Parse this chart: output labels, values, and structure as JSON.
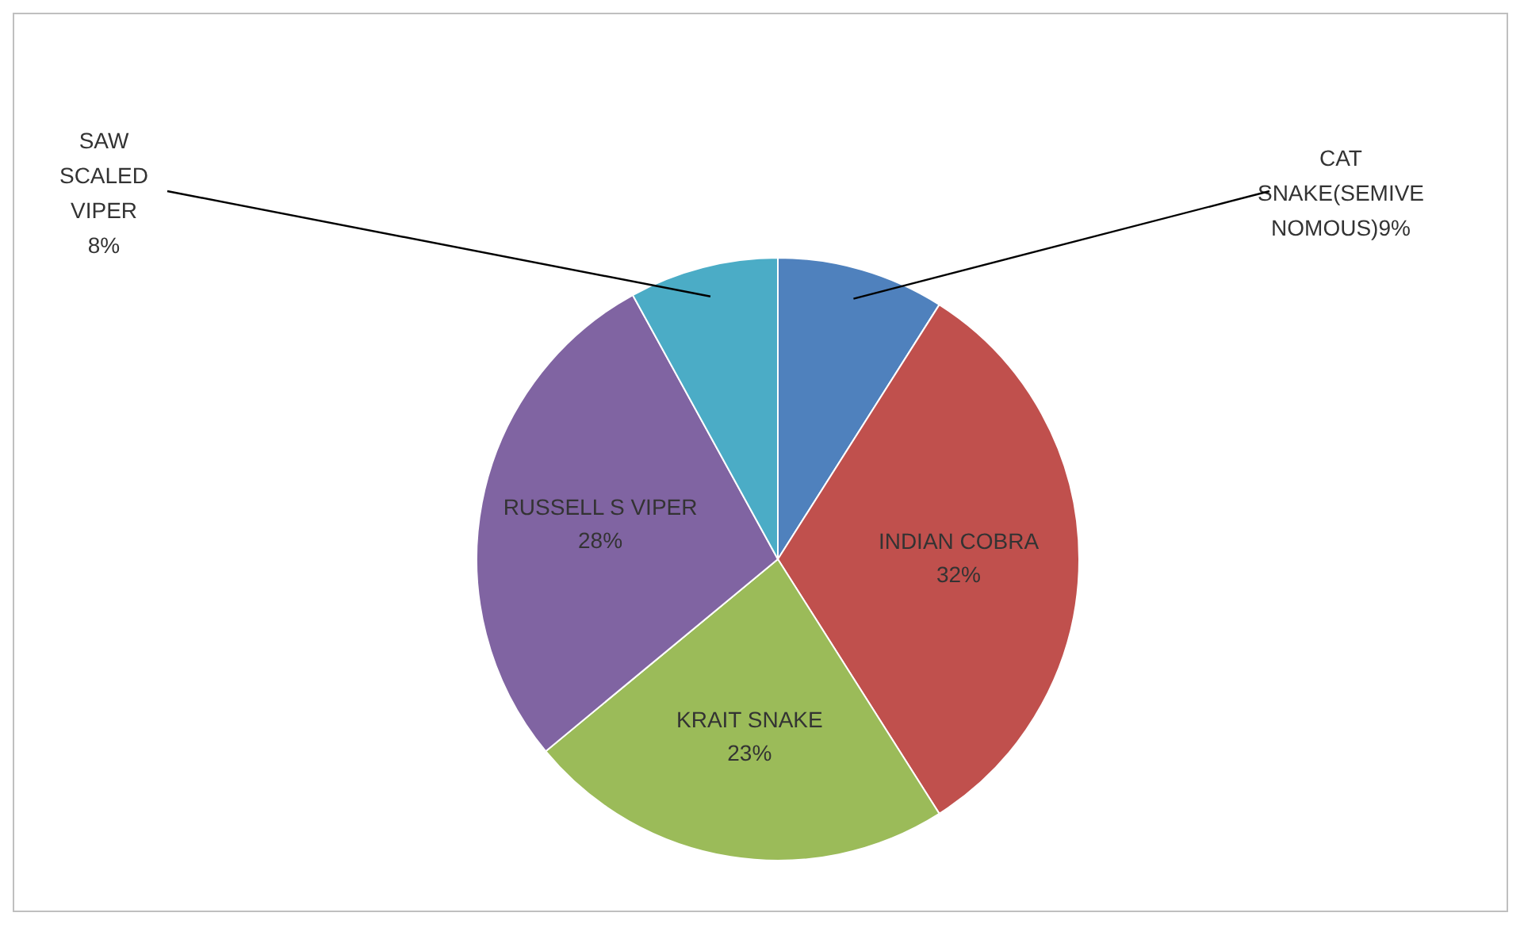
{
  "chart_data": {
    "type": "pie",
    "categories": [
      "CAT SNAKE(SEMIVE NOMOUS)",
      "INDIAN COBRA",
      "KRAIT SNAKE",
      "RUSSELL S VIPER",
      "SAW SCALED VIPER"
    ],
    "values": [
      9,
      32,
      23,
      28,
      8
    ],
    "value_labels": [
      "9%",
      "32%",
      "23%",
      "28%",
      "8%"
    ],
    "colors": [
      "#4f81bd",
      "#c0504d",
      "#9bbb59",
      "#8064a2",
      "#4bacc6"
    ],
    "legend": false
  }
}
